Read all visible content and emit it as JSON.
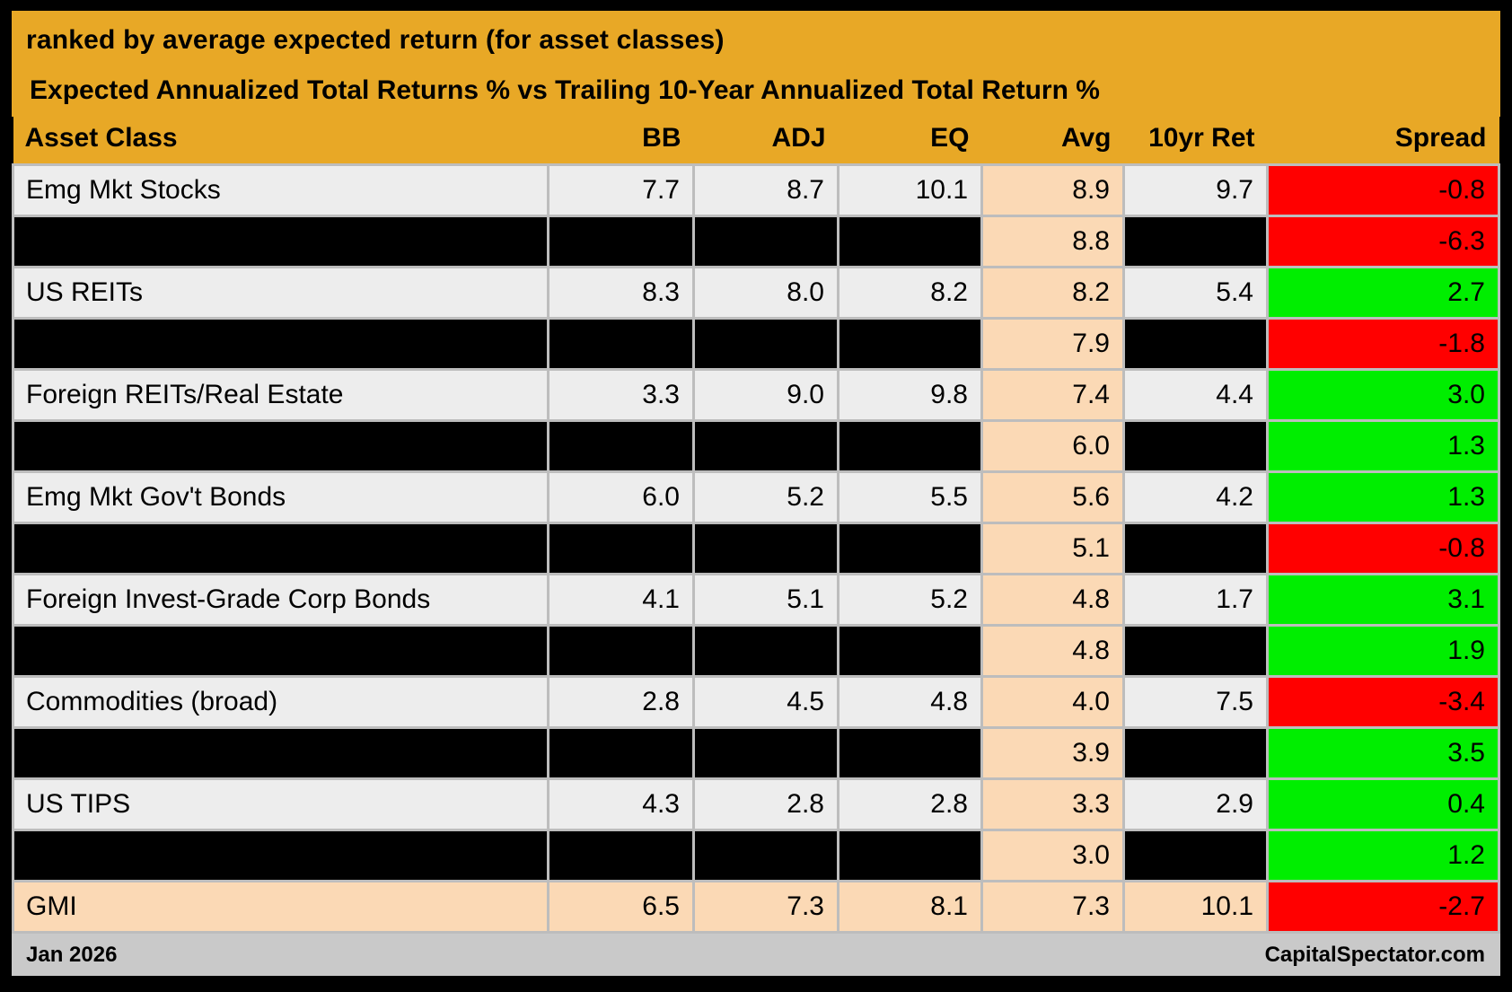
{
  "title_line1": "ranked by average expected return (for asset classes)",
  "title_line2": "Expected Annualized Total Returns % vs Trailing 10-Year Annualized Total Return %",
  "columns": [
    "Asset Class",
    "BB",
    "ADJ",
    "EQ",
    "Avg",
    "10yr Ret",
    "Spread"
  ],
  "rows": [
    {
      "asset": "Emg Mkt Stocks",
      "bb": "7.7",
      "adj": "8.7",
      "eq": "10.1",
      "avg": "8.9",
      "ret10": "9.7",
      "spread": "-0.8",
      "spread_color": "red",
      "redacted": false,
      "highlight": false
    },
    {
      "asset": "",
      "bb": "",
      "adj": "",
      "eq": "",
      "avg": "8.8",
      "ret10": "",
      "spread": "-6.3",
      "spread_color": "red",
      "redacted": true,
      "highlight": false
    },
    {
      "asset": "US REITs",
      "bb": "8.3",
      "adj": "8.0",
      "eq": "8.2",
      "avg": "8.2",
      "ret10": "5.4",
      "spread": "2.7",
      "spread_color": "green",
      "redacted": false,
      "highlight": false
    },
    {
      "asset": "",
      "bb": "",
      "adj": "",
      "eq": "",
      "avg": "7.9",
      "ret10": "",
      "spread": "-1.8",
      "spread_color": "red",
      "redacted": true,
      "highlight": false
    },
    {
      "asset": "Foreign REITs/Real Estate",
      "bb": "3.3",
      "adj": "9.0",
      "eq": "9.8",
      "avg": "7.4",
      "ret10": "4.4",
      "spread": "3.0",
      "spread_color": "green",
      "redacted": false,
      "highlight": false
    },
    {
      "asset": "",
      "bb": "",
      "adj": "",
      "eq": "",
      "avg": "6.0",
      "ret10": "",
      "spread": "1.3",
      "spread_color": "green",
      "redacted": true,
      "highlight": false
    },
    {
      "asset": "Emg Mkt Gov't Bonds",
      "bb": "6.0",
      "adj": "5.2",
      "eq": "5.5",
      "avg": "5.6",
      "ret10": "4.2",
      "spread": "1.3",
      "spread_color": "green",
      "redacted": false,
      "highlight": false
    },
    {
      "asset": "",
      "bb": "",
      "adj": "",
      "eq": "",
      "avg": "5.1",
      "ret10": "",
      "spread": "-0.8",
      "spread_color": "red",
      "redacted": true,
      "highlight": false
    },
    {
      "asset": "Foreign Invest-Grade Corp Bonds",
      "bb": "4.1",
      "adj": "5.1",
      "eq": "5.2",
      "avg": "4.8",
      "ret10": "1.7",
      "spread": "3.1",
      "spread_color": "green",
      "redacted": false,
      "highlight": false
    },
    {
      "asset": "",
      "bb": "",
      "adj": "",
      "eq": "",
      "avg": "4.8",
      "ret10": "",
      "spread": "1.9",
      "spread_color": "green",
      "redacted": true,
      "highlight": false
    },
    {
      "asset": "Commodities (broad)",
      "bb": "2.8",
      "adj": "4.5",
      "eq": "4.8",
      "avg": "4.0",
      "ret10": "7.5",
      "spread": "-3.4",
      "spread_color": "red",
      "redacted": false,
      "highlight": false
    },
    {
      "asset": "",
      "bb": "",
      "adj": "",
      "eq": "",
      "avg": "3.9",
      "ret10": "",
      "spread": "3.5",
      "spread_color": "green",
      "redacted": true,
      "highlight": false
    },
    {
      "asset": "US TIPS",
      "bb": "4.3",
      "adj": "2.8",
      "eq": "2.8",
      "avg": "3.3",
      "ret10": "2.9",
      "spread": "0.4",
      "spread_color": "green",
      "redacted": false,
      "highlight": false
    },
    {
      "asset": "",
      "bb": "",
      "adj": "",
      "eq": "",
      "avg": "3.0",
      "ret10": "",
      "spread": "1.2",
      "spread_color": "green",
      "redacted": true,
      "highlight": false
    },
    {
      "asset": "GMI",
      "bb": "6.5",
      "adj": "7.3",
      "eq": "8.1",
      "avg": "7.3",
      "ret10": "10.1",
      "spread": "-2.7",
      "spread_color": "red",
      "redacted": false,
      "highlight": true
    }
  ],
  "footer": {
    "left": "Jan 2026",
    "right": "CapitalSpectator.com"
  },
  "colors": {
    "gold": "#E8A826",
    "peach": "#FBD9B5",
    "row_bg": "#EDEDED",
    "red": "#FF0000",
    "green": "#00EE00",
    "grid": "#BDBDBD",
    "footer_bg": "#C9C9C9",
    "frame": "#000000"
  }
}
